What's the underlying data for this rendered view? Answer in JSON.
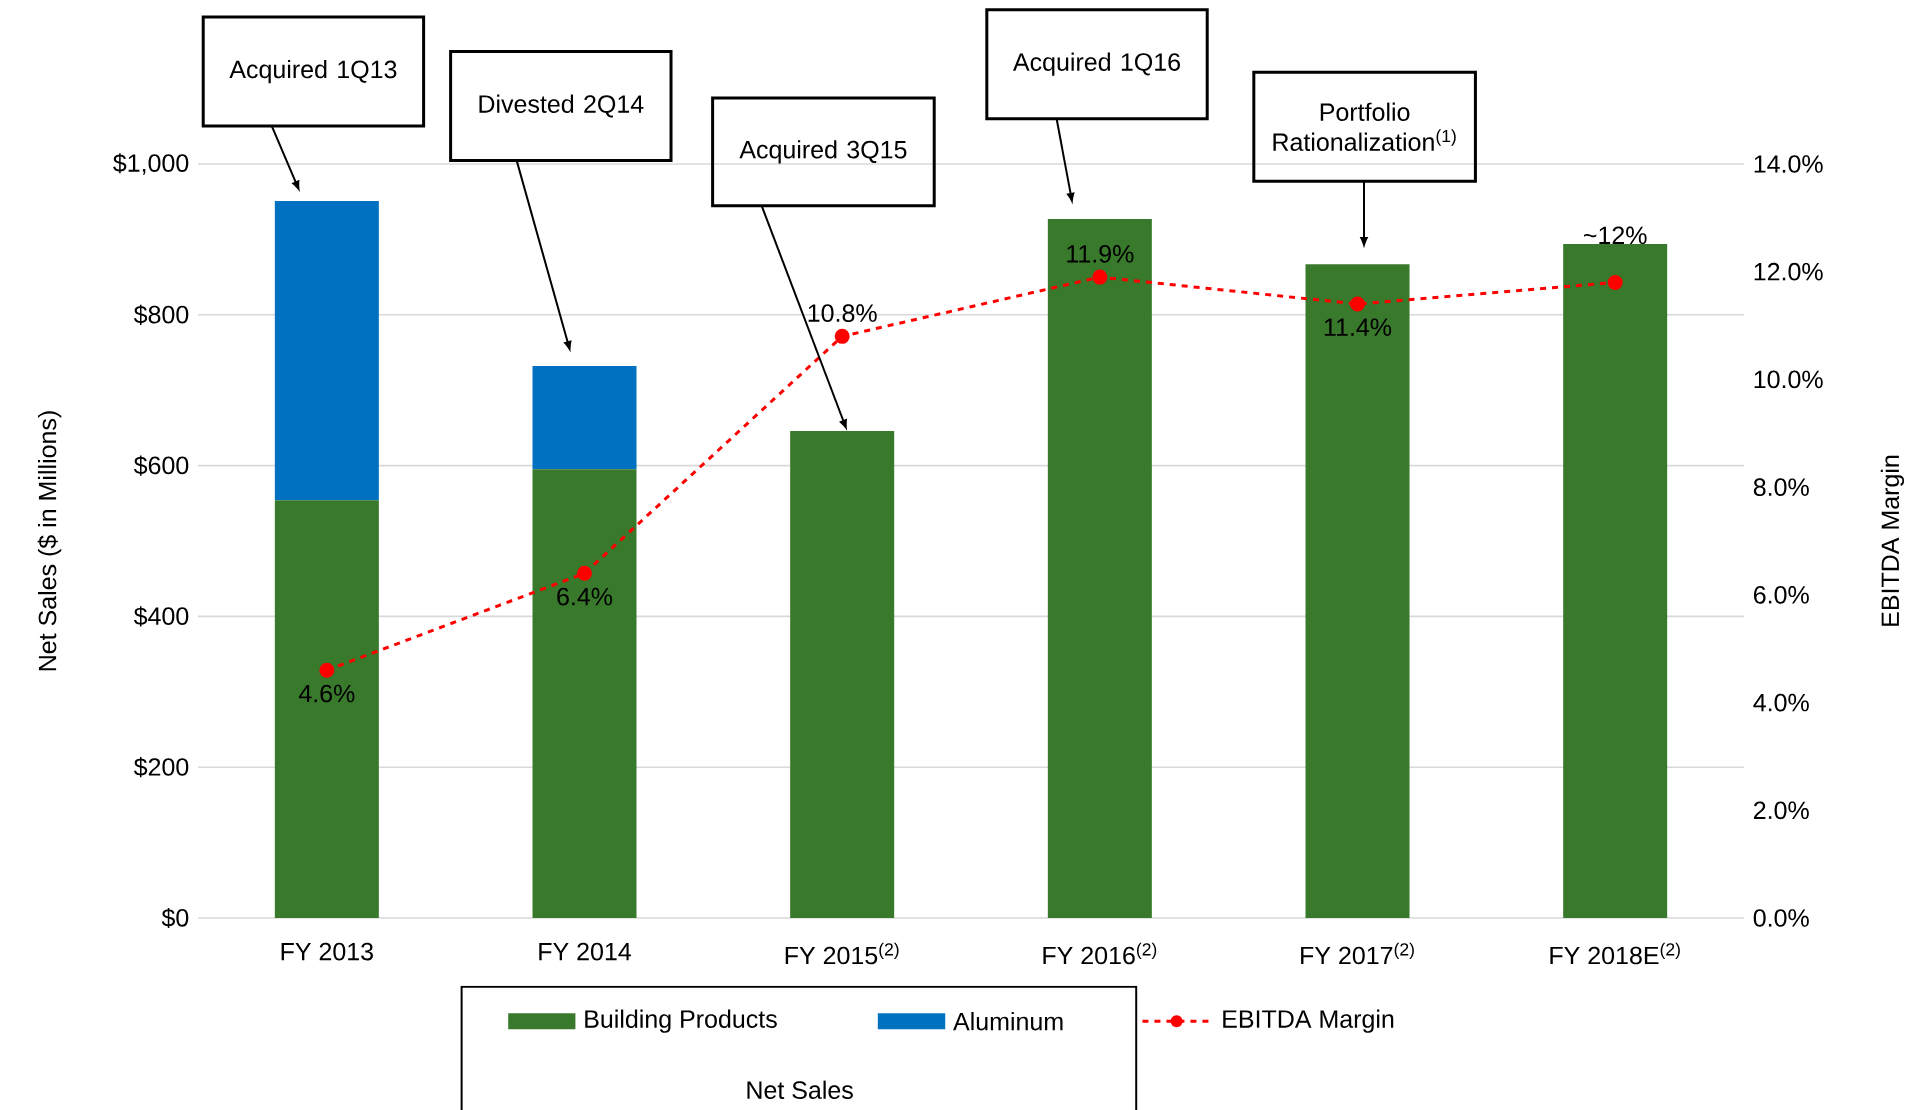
{
  "chart_data": {
    "type": "bar",
    "stacked": true,
    "categories": [
      "FY 2013",
      "FY 2014",
      "FY 2015$^{(2)}$",
      "FY 2016$^{(2)}$",
      "FY 2017$^{(2)}$",
      "FY 2018E$^{(2)}$"
    ],
    "series": [
      {
        "name": "Building Products",
        "color": "#38792b",
        "values": [
          554,
          595,
          646,
          927,
          867,
          894
        ]
      },
      {
        "name": "Aluminum",
        "color": "#0070c0",
        "values": [
          397,
          137,
          null,
          null,
          null,
          null
        ]
      },
      {
        "name": "EBITDA Margin",
        "type": "line",
        "axis": "y2",
        "color": "#ff0000",
        "values": [
          4.6,
          6.4,
          10.8,
          11.9,
          11.4,
          11.8
        ],
        "value_labels": [
          "4.6%",
          "6.4%",
          "10.8%",
          "11.9%",
          "11.4%",
          "~12%"
        ]
      }
    ],
    "ylim": [
      0,
      1000
    ],
    "yticks": [
      {
        "value": 0,
        "label": "$0"
      },
      {
        "value": 200,
        "label": "$200"
      },
      {
        "value": 400,
        "label": "$400"
      },
      {
        "value": 600,
        "label": "$600"
      },
      {
        "value": 800,
        "label": "$800"
      },
      {
        "value": 1000,
        "label": "$1,000"
      }
    ],
    "y2lim": [
      0,
      14
    ],
    "y2ticks": [
      {
        "value": 0,
        "label": "0.0%"
      },
      {
        "value": 2,
        "label": "2.0%"
      },
      {
        "value": 4,
        "label": "4.0%"
      },
      {
        "value": 6,
        "label": "6.0%"
      },
      {
        "value": 8,
        "label": "8.0%"
      },
      {
        "value": 10,
        "label": "10.0%"
      },
      {
        "value": 12,
        "label": "12.0%"
      },
      {
        "value": 14,
        "label": "14.0%"
      }
    ],
    "ylabel": "Net Sales ($ in Millions)",
    "y2label": "EBITDA Margin",
    "legend_title": "Net Sales",
    "grid": "y",
    "legend": "bottom",
    "marker": "circle",
    "line_style": "dashed",
    "annotations": [
      "Acquired 1Q13",
      "Divested 2Q14",
      "Acquired 3Q15",
      "Acquired 1Q16",
      "Portfolio Rationalization$^{(1)}$"
    ]
  }
}
